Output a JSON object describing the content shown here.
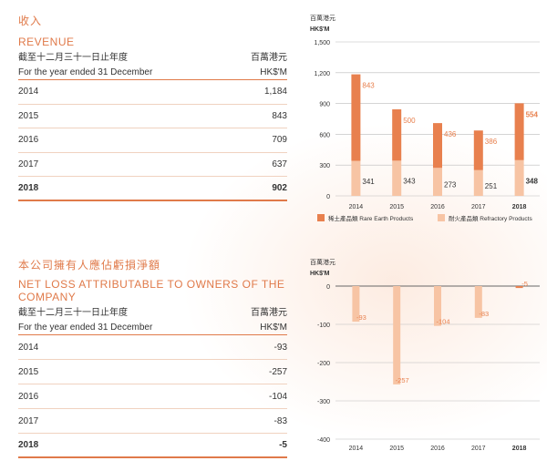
{
  "revenue": {
    "title_cn": "收入",
    "title_en": "REVENUE",
    "period_cn": "截至十二月三十一日止年度",
    "period_en": "For the year ended 31 December",
    "unit_cn": "百萬港元",
    "unit_en": "HK$'M",
    "rows": [
      {
        "year": "2014",
        "value": "1,184"
      },
      {
        "year": "2015",
        "value": "843"
      },
      {
        "year": "2016",
        "value": "709"
      },
      {
        "year": "2017",
        "value": "637"
      },
      {
        "year": "2018",
        "value": "902"
      }
    ]
  },
  "netloss": {
    "title_cn": "本公司擁有人應佔虧損淨額",
    "title_en": "NET LOSS ATTRIBUTABLE TO OWNERS OF THE COMPANY",
    "period_cn": "截至十二月三十一日止年度",
    "period_en": "For the year ended 31 December",
    "unit_cn": "百萬港元",
    "unit_en": "HK$'M",
    "rows": [
      {
        "year": "2014",
        "value": "-93"
      },
      {
        "year": "2015",
        "value": "-257"
      },
      {
        "year": "2016",
        "value": "-104"
      },
      {
        "year": "2017",
        "value": "-83"
      },
      {
        "year": "2018",
        "value": "-5"
      }
    ]
  },
  "colors": {
    "rare_earth": "#e8804e",
    "refractory": "#f7c4a4",
    "accent": "#e07a4a"
  },
  "chart_data": [
    {
      "type": "bar",
      "stacked": true,
      "ylabel_cn": "百萬港元",
      "ylabel_en": "HK$'M",
      "categories": [
        "2014",
        "2015",
        "2016",
        "2017",
        "2018"
      ],
      "ylim": [
        0,
        1500
      ],
      "yticks": [
        0,
        300,
        600,
        900,
        1200,
        1500
      ],
      "ytick_labels": [
        "0",
        "300",
        "600",
        "900",
        "1,200",
        "1,500"
      ],
      "series": [
        {
          "name": "Refractory Products",
          "name_cn": "耐火產品類",
          "values": [
            341,
            343,
            273,
            251,
            348
          ]
        },
        {
          "name": "Rare Earth Products",
          "name_cn": "稀土產品類",
          "values": [
            843,
            500,
            436,
            386,
            554
          ]
        }
      ],
      "legend": [
        {
          "label": "稀土產品類 Rare Earth Products"
        },
        {
          "label": "耐火產品類 Refractory Products"
        }
      ],
      "legend_position": "bottom"
    },
    {
      "type": "bar",
      "ylabel_cn": "百萬港元",
      "ylabel_en": "HK$'M",
      "categories": [
        "2014",
        "2015",
        "2016",
        "2017",
        "2018"
      ],
      "ylim": [
        -400,
        0
      ],
      "yticks": [
        0,
        -100,
        -200,
        -300,
        -400
      ],
      "ytick_labels": [
        "0",
        "-100",
        "-200",
        "-300",
        "-400"
      ],
      "values": [
        -93,
        -257,
        -104,
        -83,
        -5
      ]
    }
  ]
}
